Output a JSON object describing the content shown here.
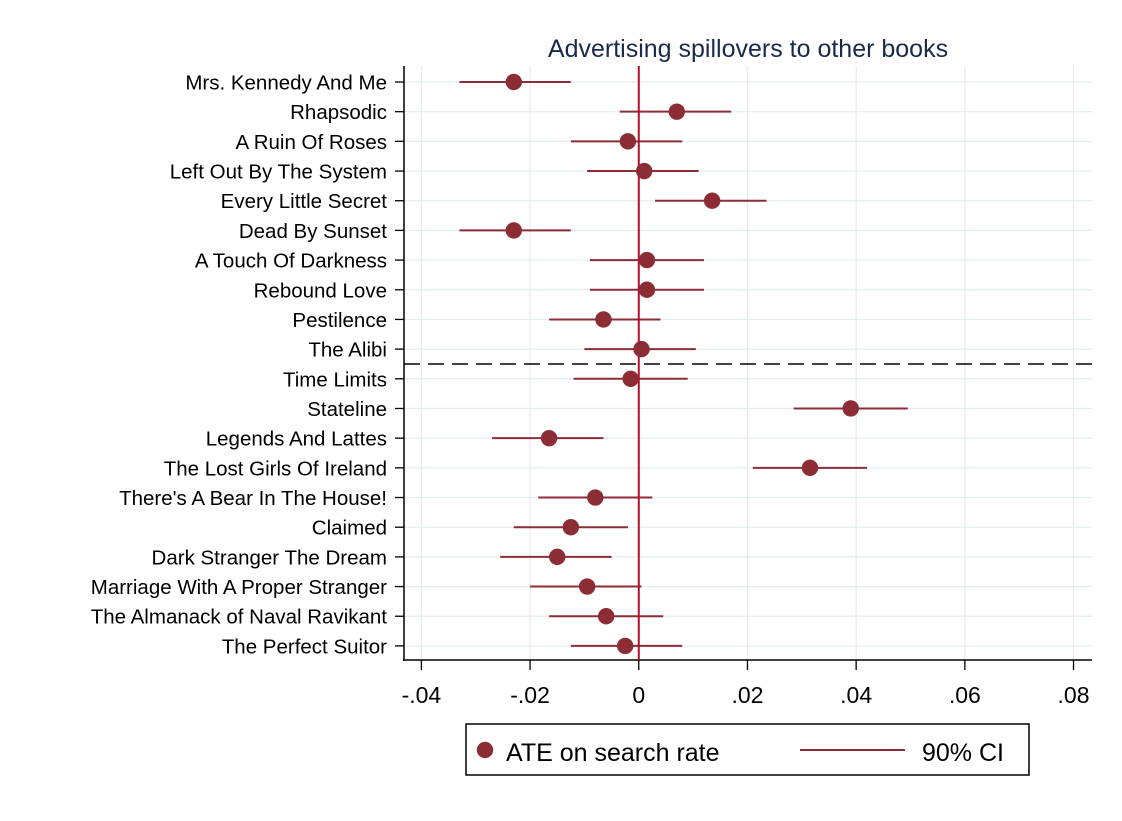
{
  "chart_data": {
    "type": "scatter",
    "title": "Advertising spillovers to other books",
    "categories": [
      "Mrs. Kennedy And Me",
      "Rhapsodic",
      "A Ruin Of Roses",
      "Left Out By The System",
      "Every Little Secret",
      "Dead By Sunset",
      "A Touch Of Darkness",
      "Rebound Love",
      "Pestilence",
      "The Alibi",
      "Time Limits",
      "Stateline",
      "Legends And Lattes",
      "The Lost Girls Of Ireland",
      "There's A Bear In The House!",
      "Claimed",
      "Dark Stranger The Dream",
      "Marriage With A Proper Stranger",
      "The Almanack of Naval Ravikant",
      "The Perfect Suitor"
    ],
    "series": [
      {
        "name": "ATE on search rate",
        "values": [
          -0.023,
          0.007,
          -0.002,
          0.001,
          0.0135,
          -0.023,
          0.0015,
          0.0015,
          -0.0065,
          0.0005,
          -0.0015,
          0.039,
          -0.0165,
          0.0315,
          -0.008,
          -0.0125,
          -0.015,
          -0.0095,
          -0.006,
          -0.0025
        ]
      }
    ],
    "ci": {
      "name": "90% CI",
      "lower": [
        -0.033,
        -0.0035,
        -0.0125,
        -0.0095,
        0.003,
        -0.033,
        -0.009,
        -0.009,
        -0.0165,
        -0.01,
        -0.012,
        0.0285,
        -0.027,
        0.021,
        -0.0185,
        -0.023,
        -0.0255,
        -0.02,
        -0.0165,
        -0.0125
      ],
      "upper": [
        -0.0125,
        0.017,
        0.008,
        0.011,
        0.0235,
        -0.0125,
        0.012,
        0.012,
        0.004,
        0.0105,
        0.009,
        0.0495,
        -0.0065,
        0.042,
        0.0025,
        -0.002,
        -0.005,
        0.0005,
        0.0045,
        0.008
      ]
    },
    "x_ticks": [
      -0.04,
      -0.02,
      0,
      0.02,
      0.04,
      0.06,
      0.08
    ],
    "x_tick_labels": [
      "-.04",
      "-.02",
      "0",
      ".02",
      ".04",
      ".06",
      ".08"
    ],
    "xlim": [
      -0.0432,
      0.0834
    ],
    "reference_line_x": 0,
    "divider_after_category": "The Alibi",
    "grid": true,
    "legend_position": "bottom",
    "colors": {
      "marker": "#8c2d35",
      "ci_line": "#8c2d35",
      "reference_line": "#b0102a",
      "grid": "#e3ecef",
      "title": "#1a2a4a",
      "axis": "#000000"
    }
  }
}
